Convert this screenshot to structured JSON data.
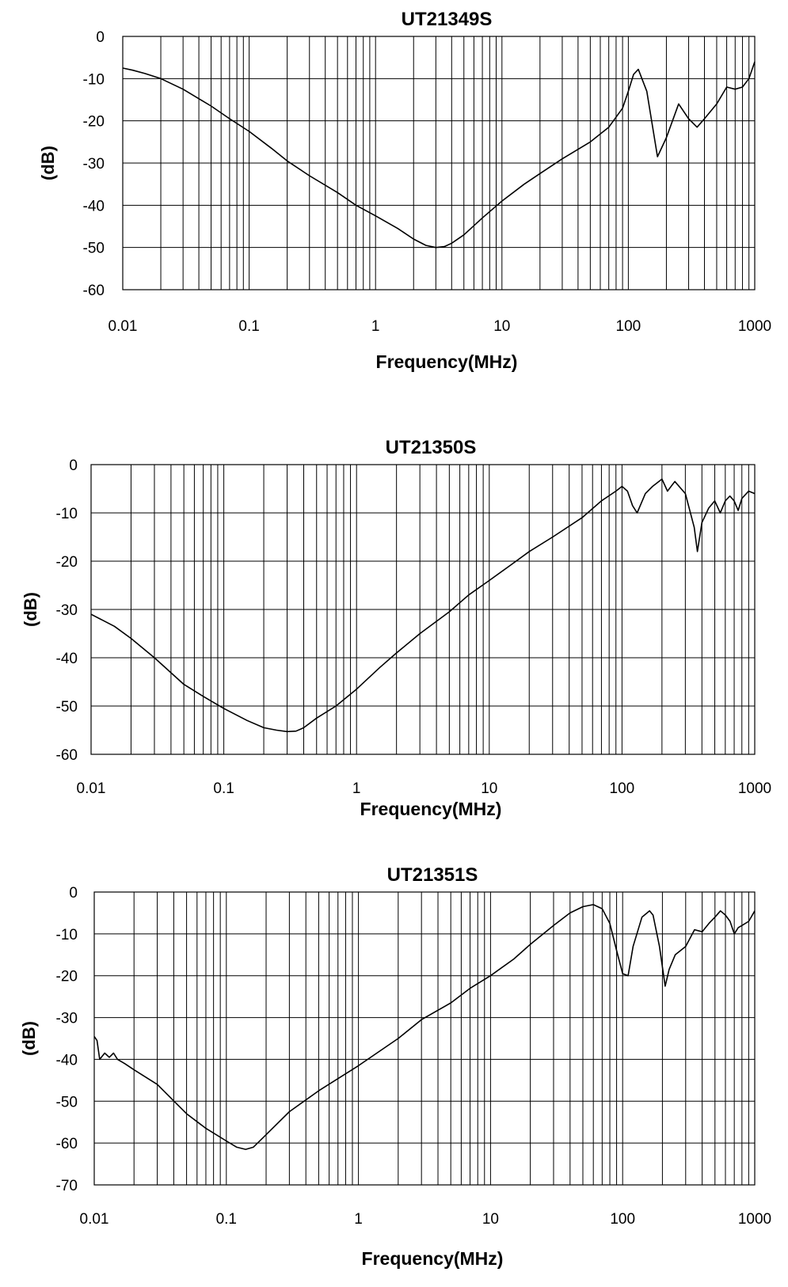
{
  "chart_data": [
    {
      "type": "line",
      "title": "UT21349S",
      "xlabel": "Frequency(MHz)",
      "ylabel": "(dB)",
      "x_scale": "log",
      "xlim": [
        0.01,
        1000
      ],
      "ylim": [
        -60,
        0
      ],
      "x_ticks": [
        "0.01",
        "0.1",
        "1",
        "10",
        "100",
        "1000"
      ],
      "y_ticks": [
        "0",
        "-10",
        "-20",
        "-30",
        "-40",
        "-50",
        "-60"
      ],
      "y_tick_values": [
        0,
        -10,
        -20,
        -30,
        -40,
        -50,
        -60
      ],
      "grid": true,
      "series": [
        {
          "x": [
            0.01,
            0.012,
            0.015,
            0.02,
            0.03,
            0.05,
            0.07,
            0.1,
            0.15,
            0.2,
            0.3,
            0.5,
            0.7,
            1,
            1.5,
            2,
            2.5,
            3,
            3.5,
            4,
            5,
            7,
            10,
            15,
            20,
            30,
            50,
            70,
            90,
            100,
            110,
            120,
            140,
            170,
            200,
            250,
            300,
            350,
            400,
            500,
            600,
            700,
            800,
            900,
            1000
          ],
          "y": [
            -7.5,
            -8,
            -8.8,
            -10,
            -12.5,
            -16.5,
            -19.5,
            -22.5,
            -26.5,
            -29.5,
            -33,
            -37,
            -40,
            -42.5,
            -45.5,
            -48,
            -49.5,
            -50,
            -49.8,
            -49,
            -47,
            -43,
            -39,
            -35,
            -32.5,
            -29,
            -25,
            -21.5,
            -17,
            -13,
            -9,
            -7.8,
            -13,
            -28.5,
            -24,
            -16,
            -19.5,
            -21.5,
            -19.5,
            -16,
            -12,
            -12.5,
            -12,
            -10,
            -6
          ]
        }
      ]
    },
    {
      "type": "line",
      "title": "UT21350S",
      "xlabel": "Frequency(MHz)",
      "ylabel": "(dB)",
      "x_scale": "log",
      "xlim": [
        0.01,
        1000
      ],
      "ylim": [
        -60,
        0
      ],
      "x_ticks": [
        "0.01",
        "0.1",
        "1",
        "10",
        "100",
        "1000"
      ],
      "y_ticks": [
        "0",
        "-10",
        "-20",
        "-30",
        "-40",
        "-50",
        "-60"
      ],
      "y_tick_values": [
        0,
        -10,
        -20,
        -30,
        -40,
        -50,
        -60
      ],
      "grid": true,
      "series": [
        {
          "x": [
            0.01,
            0.015,
            0.02,
            0.03,
            0.05,
            0.07,
            0.1,
            0.15,
            0.2,
            0.25,
            0.3,
            0.35,
            0.4,
            0.5,
            0.7,
            1,
            1.5,
            2,
            3,
            5,
            7,
            10,
            15,
            20,
            30,
            50,
            70,
            90,
            100,
            110,
            120,
            130,
            150,
            170,
            200,
            220,
            250,
            300,
            350,
            370,
            400,
            450,
            500,
            550,
            600,
            650,
            700,
            750,
            800,
            900,
            1000
          ],
          "y": [
            -31,
            -33.5,
            -36,
            -40,
            -45.5,
            -48,
            -50.5,
            -53,
            -54.5,
            -55,
            -55.3,
            -55.2,
            -54.5,
            -52.5,
            -50,
            -46.5,
            -42,
            -39,
            -35,
            -30.5,
            -27,
            -24,
            -20.5,
            -18,
            -15,
            -11,
            -7.5,
            -5.5,
            -4.5,
            -5.5,
            -8.5,
            -10,
            -6,
            -4.5,
            -3,
            -5.5,
            -3.5,
            -6,
            -13,
            -18,
            -12,
            -9,
            -7.5,
            -10,
            -7.5,
            -6.5,
            -7.5,
            -9.5,
            -7,
            -5.5,
            -6
          ]
        }
      ]
    },
    {
      "type": "line",
      "title": "UT21351S",
      "xlabel": "Frequency(MHz)",
      "ylabel": "(dB)",
      "x_scale": "log",
      "xlim": [
        0.01,
        1000
      ],
      "ylim": [
        -70,
        0
      ],
      "x_ticks": [
        "0.01",
        "0.1",
        "1",
        "10",
        "100",
        "1000"
      ],
      "y_ticks": [
        "0",
        "-10",
        "-20",
        "-30",
        "-40",
        "-50",
        "-60",
        "-70"
      ],
      "y_tick_values": [
        0,
        -10,
        -20,
        -30,
        -40,
        -50,
        -60,
        -70
      ],
      "grid": true,
      "series": [
        {
          "x": [
            0.01,
            0.0105,
            0.011,
            0.012,
            0.013,
            0.014,
            0.015,
            0.017,
            0.02,
            0.03,
            0.05,
            0.07,
            0.1,
            0.12,
            0.14,
            0.16,
            0.2,
            0.3,
            0.5,
            1,
            2,
            3,
            5,
            7,
            10,
            15,
            20,
            30,
            40,
            50,
            60,
            70,
            80,
            90,
            100,
            110,
            120,
            140,
            160,
            170,
            190,
            210,
            225,
            250,
            300,
            350,
            400,
            450,
            500,
            550,
            600,
            650,
            700,
            750,
            800,
            900,
            1000
          ],
          "y": [
            -34.5,
            -35.5,
            -40,
            -38.5,
            -39.5,
            -38.5,
            -40,
            -41,
            -42.5,
            -46,
            -53,
            -56.5,
            -59.5,
            -61,
            -61.5,
            -61,
            -58,
            -52.5,
            -47.5,
            -41.5,
            -35,
            -30.5,
            -26.5,
            -23,
            -20,
            -16,
            -12.5,
            -8,
            -5,
            -3.5,
            -3,
            -4,
            -7.5,
            -14,
            -19.5,
            -20,
            -13,
            -6,
            -4.5,
            -5.5,
            -13,
            -22.5,
            -18.5,
            -15,
            -13,
            -9,
            -9.5,
            -7.5,
            -6,
            -4.5,
            -5.5,
            -7,
            -10,
            -8.5,
            -8,
            -7,
            -4.5
          ]
        }
      ]
    }
  ]
}
